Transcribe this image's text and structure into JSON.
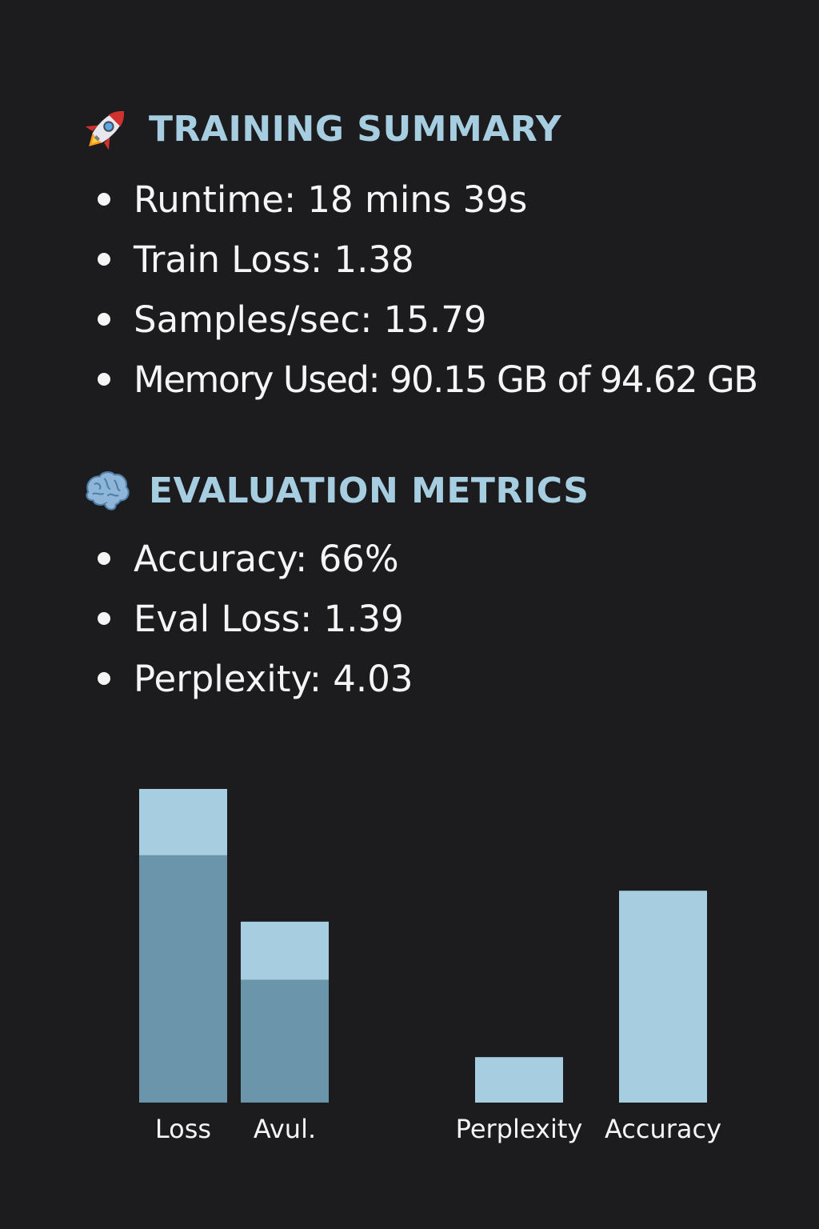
{
  "training": {
    "icon": "rocket-icon",
    "title": "TRAINING SUMMARY",
    "items": [
      "Runtime: 18 mins 39s",
      "Train Loss: 1.38",
      "Samples/sec: 15.79",
      "Memory Used: 90.15 GB of 94.62 GB"
    ]
  },
  "evaluation": {
    "icon": "brain-icon",
    "title": "EVALUATION METRICS",
    "items": [
      "Accuracy: 66%",
      "Eval Loss: 1.39",
      "Perplexity: 4.03"
    ]
  },
  "colors": {
    "background": "#1c1c1e",
    "heading": "#a6cde0",
    "bar_light": "#a6cde0",
    "bar_dark": "#6a95aa"
  },
  "chart_data": {
    "type": "bar",
    "categories": [
      "Loss",
      "Avul.",
      "Perplexity",
      "Accuracy"
    ],
    "series": [
      {
        "values": [
          2.72,
          1.35,
          0.5,
          2.33
        ]
      },
      {
        "values": [
          0.73,
          0.64,
          0,
          0
        ]
      }
    ],
    "stacked": true,
    "title": "",
    "xlabel": "",
    "ylabel": "",
    "ylim": [
      0,
      3.45
    ],
    "grid": false,
    "legend": "none"
  }
}
